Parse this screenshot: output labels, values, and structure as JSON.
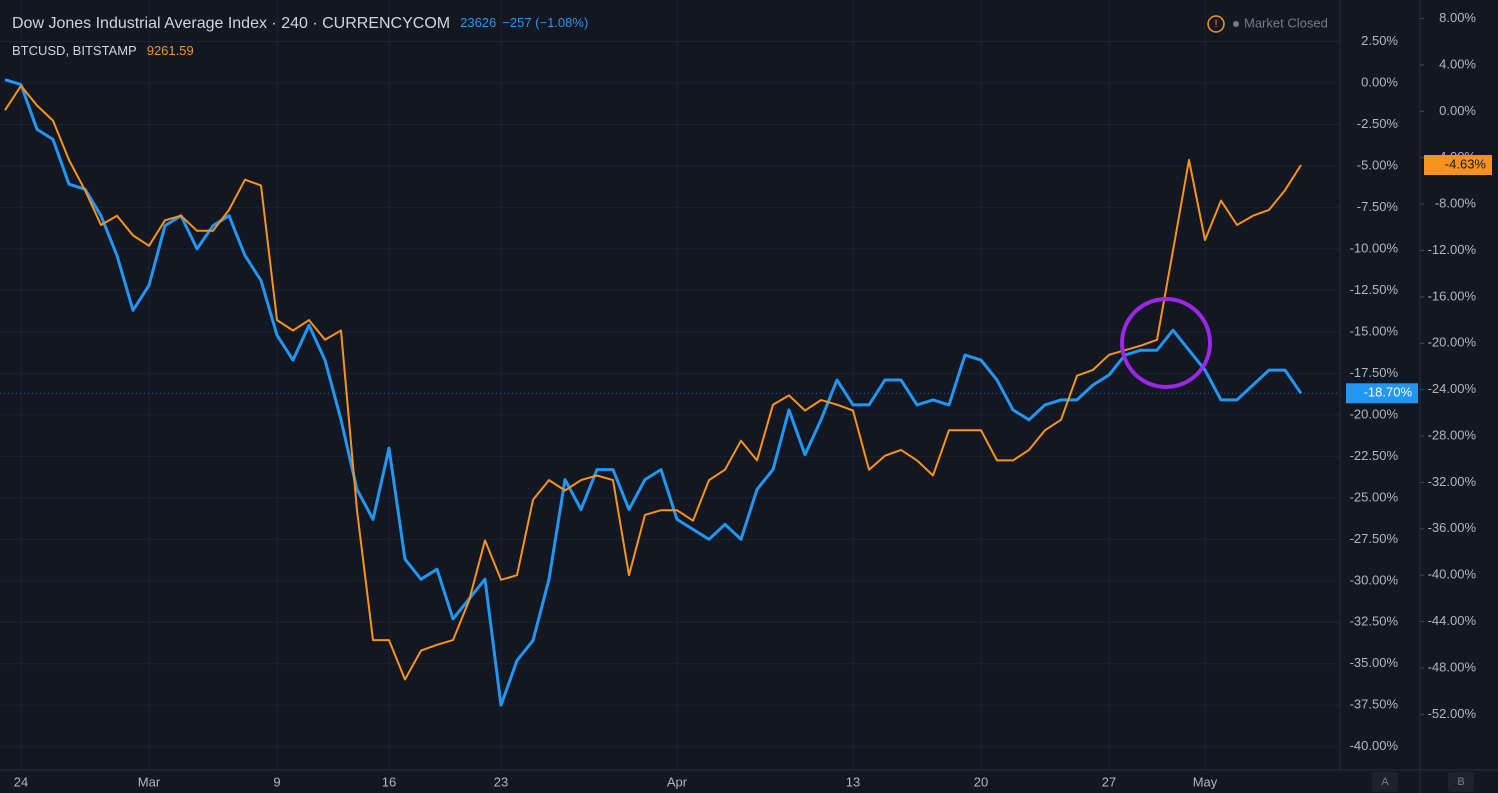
{
  "chart_data": {
    "type": "line",
    "header": {
      "interval": "240",
      "source": "CURRENCYCOM",
      "market_status": "Market Closed"
    },
    "categories": [
      null,
      "24",
      null,
      null,
      null,
      null,
      null,
      null,
      null,
      "Mar",
      null,
      null,
      null,
      null,
      null,
      null,
      null,
      "9",
      null,
      null,
      null,
      null,
      null,
      null,
      "16",
      null,
      null,
      null,
      null,
      null,
      null,
      "23",
      null,
      null,
      null,
      null,
      null,
      null,
      null,
      null,
      null,
      null,
      "Apr",
      null,
      null,
      null,
      null,
      null,
      null,
      null,
      null,
      null,
      null,
      "13",
      null,
      null,
      null,
      null,
      null,
      null,
      null,
      "20",
      null,
      null,
      null,
      null,
      null,
      null,
      null,
      "27",
      null,
      null,
      null,
      null,
      null,
      "May",
      null,
      null,
      null,
      null,
      null,
      null
    ],
    "series": [
      {
        "name": "Dow Jones Industrial Average Index",
        "color": "#2196f3",
        "axis": "y",
        "last": "23626",
        "change": "−257 (−1.08%)",
        "last_label": "-18.70%",
        "values": [
          0.2,
          -0.1,
          -2.8,
          -3.4,
          -6.1,
          -6.4,
          -8,
          -10.4,
          -13.7,
          -12.2,
          -8.6,
          -8,
          -10,
          -8.6,
          -8,
          -10.4,
          -11.9,
          -15.2,
          -16.7,
          -14.6,
          -16.7,
          -20.3,
          -24.5,
          -26.3,
          -22,
          -28.7,
          -29.9,
          -29.3,
          -32.3,
          -31.1,
          -29.9,
          -37.5,
          -34.8,
          -33.6,
          -29.9,
          -23.9,
          -25.7,
          -23.3,
          -23.3,
          -25.7,
          -23.9,
          -23.3,
          -26.3,
          -26.9,
          -27.5,
          -26.6,
          -27.5,
          -24.5,
          -23.3,
          -19.7,
          -22.4,
          -20.3,
          -17.9,
          -19.4,
          -19.4,
          -17.9,
          -17.9,
          -19.4,
          -19.1,
          -19.4,
          -16.4,
          -16.7,
          -17.9,
          -19.7,
          -20.3,
          -19.4,
          -19.1,
          -19.1,
          -18.2,
          -17.6,
          -16.4,
          -16.1,
          -16.1,
          -14.9,
          -16.1,
          -17.3,
          -19.1,
          -19.1,
          -18.2,
          -17.3,
          -17.3,
          -18.7
        ]
      },
      {
        "name": "BTCUSD, BITSTAMP",
        "color": "#f7931a",
        "axis": "y2",
        "last": "9261.59",
        "last_label": "-4.63%",
        "values": [
          0.1,
          2.2,
          0.5,
          -0.8,
          -4.2,
          -6.8,
          -9.8,
          -9,
          -10.7,
          -11.6,
          -9.4,
          -9,
          -10.3,
          -10.3,
          -8.5,
          -5.9,
          -6.4,
          -18,
          -18.9,
          -18,
          -19.7,
          -18.9,
          -34.4,
          -45.6,
          -45.6,
          -49,
          -46.5,
          -46,
          -45.6,
          -42.2,
          -37,
          -40.4,
          -40,
          -33.5,
          -31.8,
          -32.7,
          -31.8,
          -31.4,
          -31.8,
          -40,
          -34.8,
          -34.4,
          -34.4,
          -35.3,
          -31.8,
          -30.9,
          -28.4,
          -30.1,
          -25.3,
          -24.5,
          -25.8,
          -24.9,
          -25.3,
          -25.8,
          -30.9,
          -29.7,
          -29.2,
          -30.1,
          -31.4,
          -27.5,
          -27.5,
          -27.5,
          -30.1,
          -30.1,
          -29.2,
          -27.5,
          -26.6,
          -22.8,
          -22.3,
          -21,
          -20.6,
          -20.2,
          -19.7,
          -12,
          -4.2,
          -11.1,
          -7.7,
          -9.8,
          -9,
          -8.5,
          -6.8,
          -4.63
        ]
      }
    ],
    "ylim": [
      -41.4,
      5
    ],
    "yticks": [
      {
        "value": 2.5,
        "label": "2.50%"
      },
      {
        "value": 0,
        "label": "0.00%"
      },
      {
        "value": -2.5,
        "label": "-2.50%"
      },
      {
        "value": -5,
        "label": "-5.00%"
      },
      {
        "value": -7.5,
        "label": "-7.50%"
      },
      {
        "value": -10,
        "label": "-10.00%"
      },
      {
        "value": -12.5,
        "label": "-12.50%"
      },
      {
        "value": -15,
        "label": "-15.00%"
      },
      {
        "value": -17.5,
        "label": "-17.50%"
      },
      {
        "value": -20,
        "label": "-20.00%"
      },
      {
        "value": -22.5,
        "label": "-22.50%"
      },
      {
        "value": -25,
        "label": "-25.00%"
      },
      {
        "value": -27.5,
        "label": "-27.50%"
      },
      {
        "value": -30,
        "label": "-30.00%"
      },
      {
        "value": -32.5,
        "label": "-32.50%"
      },
      {
        "value": -35,
        "label": "-35.00%"
      },
      {
        "value": -37.5,
        "label": "-37.50%"
      },
      {
        "value": -40,
        "label": "-40.00%"
      }
    ],
    "y2lim": [
      -56.8,
      9.6
    ],
    "y2ticks": [
      {
        "value": 8,
        "label": "8.00%"
      },
      {
        "value": 4,
        "label": "4.00%"
      },
      {
        "value": 0,
        "label": "0.00%"
      },
      {
        "value": -4,
        "label": "-4.00%"
      },
      {
        "value": -8,
        "label": "-8.00%"
      },
      {
        "value": -12,
        "label": "-12.00%"
      },
      {
        "value": -16,
        "label": "-16.00%"
      },
      {
        "value": -20,
        "label": "-20.00%"
      },
      {
        "value": -24,
        "label": "-24.00%"
      },
      {
        "value": -28,
        "label": "-28.00%"
      },
      {
        "value": -32,
        "label": "-32.00%"
      },
      {
        "value": -36,
        "label": "-36.00%"
      },
      {
        "value": -40,
        "label": "-40.00%"
      },
      {
        "value": -44,
        "label": "-44.00%"
      },
      {
        "value": -48,
        "label": "-48.00%"
      },
      {
        "value": -52,
        "label": "-52.00%"
      }
    ],
    "grid": true,
    "scale_buttons": [
      "A",
      "B"
    ]
  }
}
